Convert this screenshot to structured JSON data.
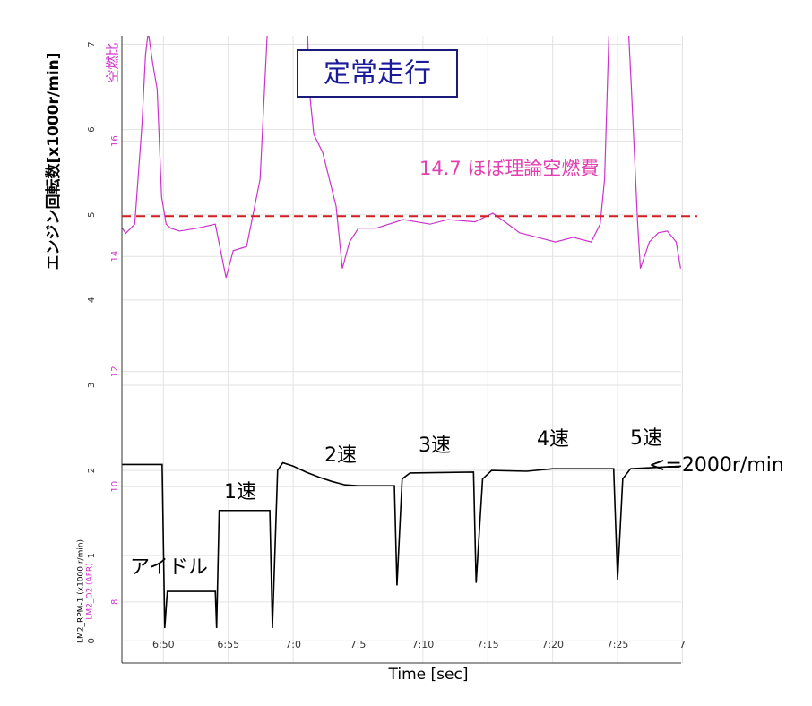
{
  "chart_data": {
    "type": "line",
    "title": "定常走行",
    "y_label": "エンジン回転数[x1000r/min]",
    "y2_label": "空燃比",
    "x_label": "Time [sec]",
    "xlim": [
      406.8,
      449.9
    ],
    "xticks": [
      {
        "value": 410,
        "label": "6:50"
      },
      {
        "value": 415,
        "label": "6:55"
      },
      {
        "value": 420,
        "label": "7:0"
      },
      {
        "value": 425,
        "label": "7:5"
      },
      {
        "value": 430,
        "label": "7:10"
      },
      {
        "value": 435,
        "label": "7:15"
      },
      {
        "value": 440,
        "label": "7:20"
      },
      {
        "value": 445,
        "label": "7:25"
      },
      {
        "value": 450,
        "label": "7"
      }
    ],
    "ylim": [
      -0.26,
      7.1
    ],
    "yticks": [
      0,
      1,
      2,
      3,
      4,
      5,
      6,
      7
    ],
    "y2lim": [
      6.94,
      17.83
    ],
    "y2ticks": [
      8,
      10,
      12,
      14,
      16
    ],
    "grid": true,
    "reference_line": {
      "value": 14.7,
      "axis": "y2",
      "color": "#d02020",
      "label": "14.7  ほぼ理論空燃費"
    },
    "annotations": [
      "アイドル",
      "1速",
      "2速",
      "3速",
      "4速",
      "5速",
      "<=2000r/min"
    ],
    "series": [
      {
        "name": "LM2_RPM-1 (x1000 r/min)",
        "color": "#000000",
        "x": [
          406.8,
          409.9,
          410.1,
          410.3,
          414.0,
          414.1,
          414.3,
          418.2,
          418.4,
          418.8,
          419.2,
          420,
          421,
          422,
          423,
          424,
          425,
          427.8,
          428.0,
          428.4,
          429,
          433.9,
          434.1,
          434.6,
          435.3,
          438,
          440,
          444.7,
          445.0,
          445.4,
          446,
          449.9
        ],
        "values": [
          2.07,
          2.07,
          0.15,
          0.58,
          0.58,
          0.15,
          1.53,
          1.53,
          0.15,
          2.0,
          2.09,
          2.05,
          1.98,
          1.92,
          1.87,
          1.83,
          1.82,
          1.82,
          0.65,
          1.9,
          1.97,
          1.98,
          0.68,
          1.9,
          2.0,
          1.99,
          2.02,
          2.02,
          0.72,
          1.9,
          2.02,
          2.05
        ]
      },
      {
        "name": "LM2_O2 (AFR)",
        "color": "#cc33cc",
        "axis": "y2",
        "x": [
          406.83,
          407.1,
          407.79,
          408.34,
          408.62,
          408.83,
          409.17,
          409.52,
          409.86,
          410.21,
          410.55,
          411.24,
          412.62,
          414.0,
          414.55,
          414.83,
          415.38,
          416.41,
          416.9,
          417.45,
          417.79,
          418.14,
          421.03,
          421.24,
          421.59,
          422.28,
          423.31,
          423.79,
          424.34,
          425.03,
          426.41,
          428.48,
          430.55,
          431.93,
          434.0,
          435.38,
          436.07,
          437.45,
          438.83,
          440.21,
          441.59,
          442.97,
          443.66,
          444.0,
          444.34,
          444.69,
          445.72,
          446.07,
          446.55,
          446.76,
          447.45,
          448.14,
          448.83,
          449.52,
          449.86
        ],
        "values": [
          14.49,
          14.4,
          14.56,
          16.27,
          17.5,
          17.9,
          17.36,
          16.9,
          15.03,
          14.56,
          14.49,
          14.44,
          14.49,
          14.56,
          13.94,
          13.63,
          14.1,
          14.17,
          14.72,
          15.34,
          16.9,
          18.5,
          18.5,
          16.9,
          16.12,
          15.8,
          14.87,
          13.79,
          14.25,
          14.49,
          14.49,
          14.64,
          14.56,
          14.64,
          14.6,
          14.75,
          14.64,
          14.41,
          14.33,
          14.25,
          14.33,
          14.25,
          14.56,
          15.34,
          17.9,
          18.5,
          18.5,
          16.9,
          14.56,
          13.79,
          14.25,
          14.41,
          14.44,
          14.25,
          13.79
        ]
      }
    ]
  }
}
